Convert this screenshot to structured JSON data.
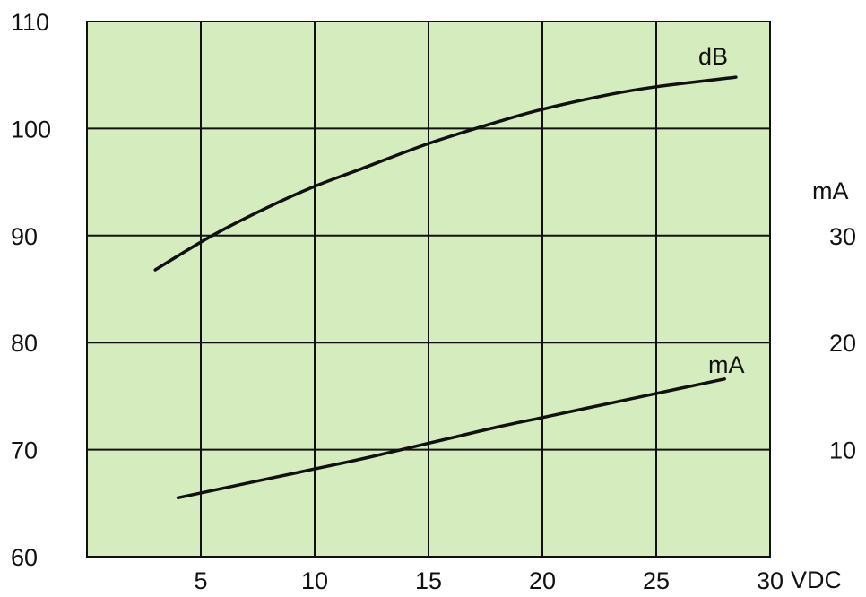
{
  "chart_data": {
    "type": "line",
    "colors": {
      "plot_background": "#d5ecbf",
      "line": "#111111"
    },
    "grid": true,
    "x_axis": {
      "range": [
        0,
        30
      ],
      "ticks": [
        5,
        10,
        15,
        20,
        25,
        30
      ],
      "tick_labels": [
        "5",
        "10",
        "15",
        "20",
        "25",
        "30"
      ],
      "unit": "VDC"
    },
    "y_axis_left": {
      "range": [
        60,
        110
      ],
      "ticks": [
        60,
        70,
        80,
        90,
        100,
        110
      ],
      "tick_labels": [
        "60",
        "70",
        "80",
        "90",
        "100",
        "110"
      ]
    },
    "y_axis_right": {
      "range": [
        0,
        50
      ],
      "ticks": [
        10,
        20,
        30
      ],
      "tick_labels": [
        "10",
        "20",
        "30"
      ],
      "unit": "mA"
    },
    "series": [
      {
        "name": "dB",
        "axis": "left",
        "x": [
          3,
          5.5,
          8,
          10,
          12,
          15,
          18,
          20,
          23,
          25,
          28.5
        ],
        "y": [
          86.8,
          90,
          92.7,
          94.6,
          96.2,
          98.6,
          100.6,
          101.8,
          103.2,
          103.9,
          104.8
        ]
      },
      {
        "name": "mA",
        "axis": "right",
        "x": [
          4,
          6,
          8,
          10,
          12,
          14,
          16,
          18,
          20,
          22,
          24,
          26,
          28
        ],
        "y": [
          5.5,
          6.4,
          7.3,
          8.2,
          9.1,
          10.1,
          11.1,
          12.1,
          13.0,
          13.9,
          14.8,
          15.7,
          16.6
        ]
      }
    ]
  }
}
